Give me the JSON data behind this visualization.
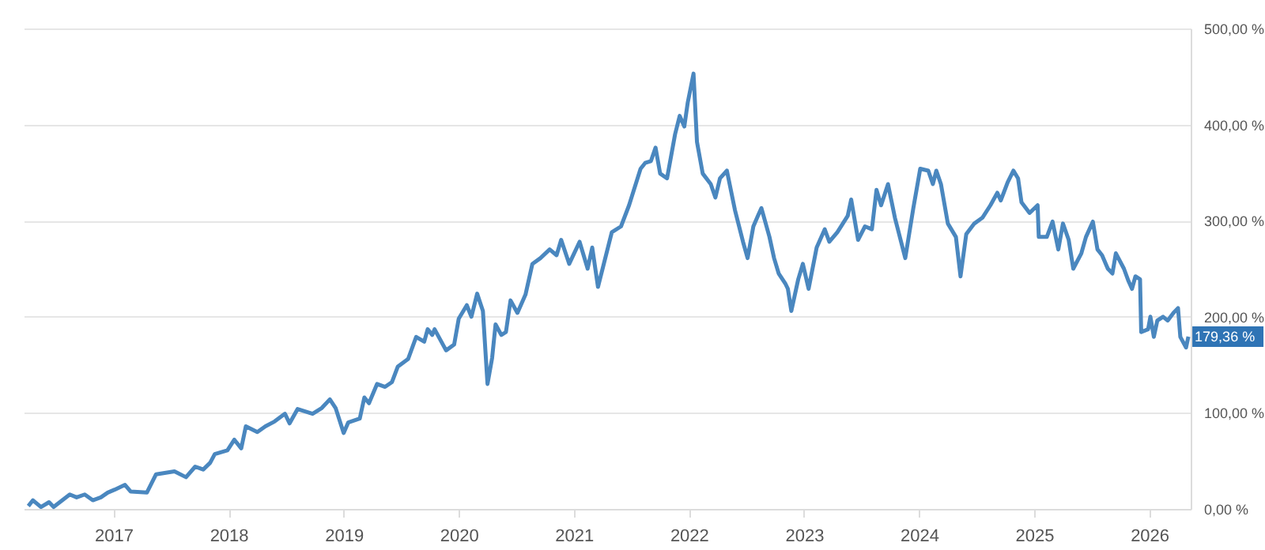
{
  "chart_data": {
    "type": "line",
    "x": [
      2016.26,
      2016.3,
      2016.37,
      2016.44,
      2016.48,
      2016.62,
      2016.68,
      2016.75,
      2016.82,
      2016.89,
      2016.95,
      2017.01,
      2017.1,
      2017.15,
      2017.29,
      2017.37,
      2017.53,
      2017.63,
      2017.71,
      2017.78,
      2017.84,
      2017.88,
      2017.99,
      2018.05,
      2018.11,
      2018.15,
      2018.25,
      2018.32,
      2018.4,
      2018.49,
      2018.53,
      2018.6,
      2018.73,
      2018.81,
      2018.88,
      2018.93,
      2019.0,
      2019.04,
      2019.14,
      2019.18,
      2019.22,
      2019.29,
      2019.36,
      2019.42,
      2019.47,
      2019.56,
      2019.63,
      2019.7,
      2019.73,
      2019.77,
      2019.79,
      2019.89,
      2019.96,
      2020.0,
      2020.07,
      2020.11,
      2020.16,
      2020.21,
      2020.25,
      2020.29,
      2020.32,
      2020.37,
      2020.41,
      2020.45,
      2020.51,
      2020.58,
      2020.64,
      2020.71,
      2020.79,
      2020.85,
      2020.89,
      2020.96,
      2021.05,
      2021.12,
      2021.16,
      2021.21,
      2021.33,
      2021.41,
      2021.48,
      2021.58,
      2021.62,
      2021.67,
      2021.71,
      2021.75,
      2021.81,
      2021.88,
      2021.92,
      2021.96,
      2021.99,
      2022.04,
      2022.07,
      2022.12,
      2022.19,
      2022.23,
      2022.27,
      2022.33,
      2022.4,
      2022.47,
      2022.51,
      2022.56,
      2022.6,
      2022.63,
      2022.7,
      2022.74,
      2022.78,
      2022.84,
      2022.86,
      2022.89,
      2022.95,
      2022.99,
      2023.04,
      2023.11,
      2023.18,
      2023.22,
      2023.29,
      2023.38,
      2023.41,
      2023.47,
      2023.53,
      2023.59,
      2023.63,
      2023.67,
      2023.73,
      2023.79,
      2023.88,
      2023.95,
      2024.01,
      2024.08,
      2024.12,
      2024.15,
      2024.19,
      2024.25,
      2024.32,
      2024.36,
      2024.41,
      2024.48,
      2024.55,
      2024.62,
      2024.68,
      2024.71,
      2024.77,
      2024.82,
      2024.86,
      2024.89,
      2024.96,
      2025.03,
      2025.04,
      2025.11,
      2025.16,
      2025.21,
      2025.25,
      2025.3,
      2025.34,
      2025.41,
      2025.45,
      2025.51,
      2025.55,
      2025.59,
      2025.64,
      2025.68,
      2025.71,
      2025.78,
      2025.82,
      2025.85,
      2025.88,
      2025.92,
      2025.93,
      2025.99,
      2026.01,
      2026.04,
      2026.07,
      2026.12,
      2026.16,
      2026.21,
      2026.25,
      2026.27,
      2026.32,
      2026.34
    ],
    "series": [
      {
        "color": "#4a87bf",
        "values": [
          3,
          9,
          2,
          7,
          2,
          15,
          12,
          15,
          9,
          12,
          17,
          20,
          25,
          18,
          17,
          36,
          39,
          33,
          44,
          41,
          48,
          57,
          61,
          72,
          63,
          86,
          80,
          86,
          91,
          99,
          89,
          104,
          99,
          105,
          114,
          105,
          79,
          90,
          94,
          116,
          110,
          130,
          127,
          132,
          148,
          156,
          179,
          174,
          187,
          181,
          187,
          165,
          171,
          198,
          212,
          200,
          224,
          206,
          130,
          157,
          192,
          181,
          184,
          217,
          204,
          223,
          255,
          261,
          270,
          264,
          280,
          255,
          278,
          250,
          272,
          231,
          288,
          294,
          316,
          354,
          360,
          362,
          376,
          349,
          344,
          390,
          409,
          398,
          423,
          453,
          382,
          349,
          338,
          324,
          344,
          352,
          311,
          278,
          261,
          294,
          305,
          313,
          283,
          261,
          245,
          234,
          229,
          206,
          239,
          255,
          229,
          272,
          291,
          278,
          288,
          305,
          322,
          280,
          294,
          291,
          332,
          316,
          338,
          303,
          261,
          313,
          354,
          352,
          338,
          352,
          338,
          297,
          283,
          242,
          286,
          297,
          303,
          316,
          329,
          321,
          340,
          352,
          344,
          319,
          308,
          316,
          283,
          283,
          299,
          270,
          297,
          280,
          250,
          266,
          283,
          299,
          270,
          264,
          250,
          245,
          266,
          250,
          237,
          229,
          242,
          239,
          184,
          187,
          200,
          179,
          196,
          200,
          196,
          204,
          209,
          179,
          168,
          179.36
        ]
      }
    ],
    "xlim": [
      2016.22,
      2026.36
    ],
    "xticks": [
      2017,
      2018,
      2019,
      2020,
      2021,
      2022,
      2023,
      2024,
      2025,
      2026
    ],
    "ylim": [
      0,
      500
    ],
    "yticks": [
      {
        "value": 0,
        "label": "0,00 %"
      },
      {
        "value": 100,
        "label": "100,00 %"
      },
      {
        "value": 200,
        "label": "200,00 %"
      },
      {
        "value": 300,
        "label": "300,00 %"
      },
      {
        "value": 400,
        "label": "400,00 %"
      },
      {
        "value": 500,
        "label": "500,00 %"
      }
    ],
    "grid": "y",
    "annotations": [
      {
        "text": "179,36 %",
        "x": 2026.34,
        "y": 179.36
      }
    ]
  }
}
